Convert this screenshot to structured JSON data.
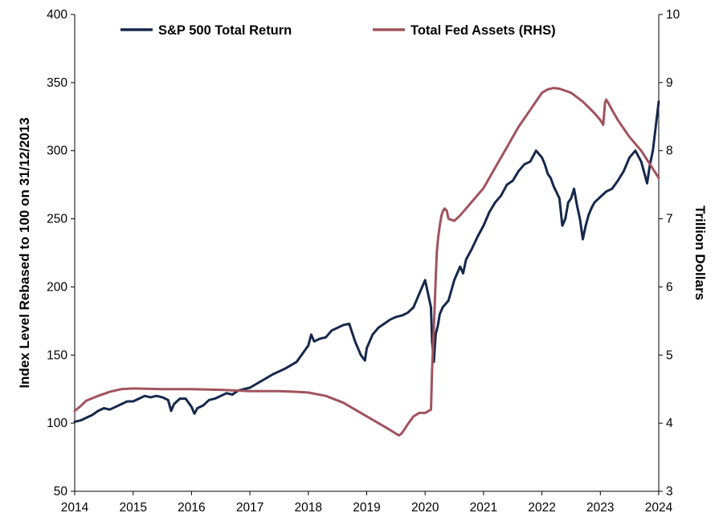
{
  "chart_data": {
    "type": "line",
    "title": "",
    "ylabel": "Index Level Rebased to 100 on 31/12/2013",
    "ylabel_right": "Trillion Dollars",
    "xlim": [
      2014,
      2024
    ],
    "ylim": [
      50,
      400
    ],
    "ylim_right": [
      3,
      10
    ],
    "x_ticks": [
      "2014",
      "2015",
      "2016",
      "2017",
      "2018",
      "2019",
      "2020",
      "2021",
      "2022",
      "2023",
      "2024"
    ],
    "y_ticks": [
      "50",
      "100",
      "150",
      "200",
      "250",
      "300",
      "350",
      "400"
    ],
    "y_ticks_right": [
      "3",
      "4",
      "5",
      "6",
      "7",
      "8",
      "9",
      "10"
    ],
    "grid": false,
    "legend_position": "top",
    "series": [
      {
        "name": "S&P 500 Total Return",
        "axis": "left",
        "color": "#15284b",
        "x": [
          2014.0,
          2014.1,
          2014.2,
          2014.3,
          2014.4,
          2014.5,
          2014.6,
          2014.7,
          2014.8,
          2014.9,
          2015.0,
          2015.1,
          2015.2,
          2015.3,
          2015.4,
          2015.5,
          2015.6,
          2015.65,
          2015.7,
          2015.8,
          2015.9,
          2016.0,
          2016.05,
          2016.1,
          2016.2,
          2016.3,
          2016.4,
          2016.5,
          2016.6,
          2016.7,
          2016.8,
          2016.9,
          2017.0,
          2017.2,
          2017.4,
          2017.6,
          2017.8,
          2018.0,
          2018.05,
          2018.1,
          2018.2,
          2018.3,
          2018.4,
          2018.5,
          2018.6,
          2018.7,
          2018.8,
          2018.9,
          2018.97,
          2019.0,
          2019.1,
          2019.2,
          2019.3,
          2019.4,
          2019.5,
          2019.6,
          2019.7,
          2019.8,
          2019.9,
          2020.0,
          2020.1,
          2020.12,
          2020.15,
          2020.18,
          2020.22,
          2020.25,
          2020.3,
          2020.4,
          2020.5,
          2020.6,
          2020.65,
          2020.7,
          2020.8,
          2020.9,
          2021.0,
          2021.1,
          2021.2,
          2021.3,
          2021.4,
          2021.5,
          2021.6,
          2021.7,
          2021.8,
          2021.9,
          2022.0,
          2022.05,
          2022.1,
          2022.15,
          2022.2,
          2022.3,
          2022.35,
          2022.4,
          2022.45,
          2022.5,
          2022.55,
          2022.6,
          2022.65,
          2022.7,
          2022.75,
          2022.8,
          2022.85,
          2022.9,
          2023.0,
          2023.1,
          2023.2,
          2023.3,
          2023.4,
          2023.5,
          2023.6,
          2023.7,
          2023.8,
          2023.85,
          2023.9,
          2024.0
        ],
        "values": [
          101,
          102,
          104,
          106,
          109,
          111,
          110,
          112,
          114,
          116,
          116,
          118,
          120,
          119,
          120,
          119,
          117,
          109,
          114,
          118,
          118,
          112,
          107,
          111,
          113,
          117,
          118,
          120,
          122,
          121,
          124,
          125,
          126,
          131,
          136,
          140,
          145,
          157,
          165,
          160,
          162,
          163,
          168,
          170,
          172,
          173,
          160,
          150,
          146,
          155,
          165,
          170,
          173,
          176,
          178,
          179,
          181,
          185,
          195,
          205,
          185,
          160,
          145,
          165,
          172,
          180,
          185,
          190,
          205,
          215,
          210,
          220,
          228,
          237,
          245,
          255,
          262,
          267,
          275,
          278,
          285,
          290,
          292,
          300,
          295,
          290,
          283,
          280,
          274,
          265,
          245,
          250,
          262,
          265,
          272,
          260,
          250,
          235,
          245,
          253,
          258,
          262,
          266,
          270,
          272,
          278,
          285,
          295,
          300,
          292,
          276,
          290,
          300,
          336
        ]
      },
      {
        "name": "Total Fed Assets (RHS)",
        "axis": "right",
        "color": "#a0535d",
        "x": [
          2014.0,
          2014.1,
          2014.2,
          2014.4,
          2014.6,
          2014.8,
          2015.0,
          2015.5,
          2016.0,
          2016.5,
          2017.0,
          2017.5,
          2017.8,
          2018.0,
          2018.3,
          2018.6,
          2018.9,
          2019.2,
          2019.4,
          2019.55,
          2019.6,
          2019.7,
          2019.8,
          2019.9,
          2020.0,
          2020.1,
          2020.12,
          2020.15,
          2020.18,
          2020.2,
          2020.22,
          2020.25,
          2020.28,
          2020.3,
          2020.33,
          2020.37,
          2020.4,
          2020.5,
          2020.6,
          2020.7,
          2020.8,
          2020.9,
          2021.0,
          2021.2,
          2021.4,
          2021.6,
          2021.8,
          2022.0,
          2022.1,
          2022.2,
          2022.3,
          2022.5,
          2022.7,
          2022.9,
          2023.0,
          2023.05,
          2023.08,
          2023.1,
          2023.15,
          2023.2,
          2023.3,
          2023.5,
          2023.7,
          2023.85,
          2024.0
        ],
        "values": [
          4.18,
          4.25,
          4.33,
          4.4,
          4.46,
          4.5,
          4.51,
          4.5,
          4.5,
          4.49,
          4.47,
          4.47,
          4.46,
          4.45,
          4.4,
          4.3,
          4.15,
          4.0,
          3.9,
          3.82,
          3.85,
          3.98,
          4.1,
          4.15,
          4.15,
          4.2,
          4.8,
          5.4,
          6.1,
          6.5,
          6.7,
          6.9,
          7.05,
          7.1,
          7.15,
          7.12,
          7.0,
          6.97,
          7.05,
          7.15,
          7.25,
          7.35,
          7.45,
          7.75,
          8.05,
          8.35,
          8.6,
          8.85,
          8.9,
          8.92,
          8.91,
          8.85,
          8.72,
          8.55,
          8.45,
          8.38,
          8.7,
          8.75,
          8.68,
          8.6,
          8.45,
          8.2,
          8.0,
          7.8,
          7.6
        ]
      }
    ]
  }
}
